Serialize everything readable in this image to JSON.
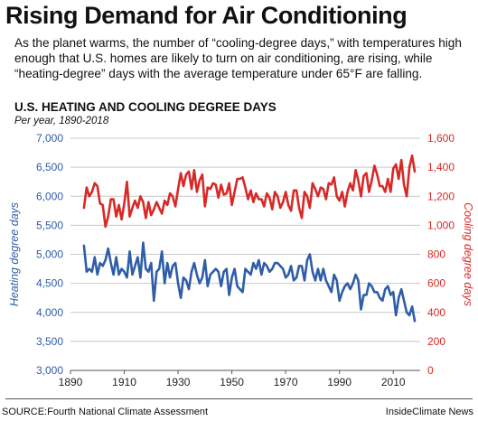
{
  "header": {
    "title": "Rising Demand for Air Conditioning",
    "subtitle": "As the planet warms, the number of “cooling-degree days,” with temperatures high enough  that U.S. homes are likely to turn on air conditioning, are rising, while “heating-degree” days with the average temperature under 65°F are falling."
  },
  "footer": {
    "source": "SOURCE:Fourth National Climate Assessment",
    "credit": "InsideClimate News"
  },
  "chart_data": {
    "type": "line",
    "title": "U.S. HEATING AND COOLING DEGREE DAYS",
    "subtitle": "Per year, 1890-2018",
    "x_ticks": [
      1890,
      1910,
      1930,
      1950,
      1970,
      1990,
      2010
    ],
    "xlim": [
      1890,
      2020
    ],
    "ylabel_left": "Heating degree days",
    "ylabel_right": "Cooling degree days",
    "y_left_ticks": [
      "3,000",
      "3,500",
      "4,000",
      "4,500",
      "5,000",
      "5,500",
      "6,000",
      "6,500",
      "7,000"
    ],
    "y_left_lim": [
      3000,
      7000
    ],
    "y_right_ticks": [
      "0",
      "200",
      "400",
      "600",
      "800",
      "1,000",
      "1,200",
      "1,400",
      "1,600"
    ],
    "y_right_lim": [
      0,
      1600
    ],
    "grid": "horizontal",
    "colors": {
      "heating": "#2f5da8",
      "cooling": "#d62a27",
      "grid": "#c8c8c8",
      "left_axis": "#2f5da8",
      "right_axis": "#d62a27"
    },
    "series": [
      {
        "key": "heating",
        "axis": "left",
        "x": [
          1895,
          1896,
          1897,
          1898,
          1899,
          1900,
          1901,
          1902,
          1903,
          1904,
          1905,
          1906,
          1907,
          1908,
          1909,
          1910,
          1911,
          1912,
          1913,
          1914,
          1915,
          1916,
          1917,
          1918,
          1919,
          1920,
          1921,
          1922,
          1923,
          1924,
          1925,
          1926,
          1927,
          1928,
          1929,
          1930,
          1931,
          1932,
          1933,
          1934,
          1935,
          1936,
          1937,
          1938,
          1939,
          1940,
          1941,
          1942,
          1943,
          1944,
          1945,
          1946,
          1947,
          1948,
          1949,
          1950,
          1951,
          1952,
          1953,
          1954,
          1955,
          1956,
          1957,
          1958,
          1959,
          1960,
          1961,
          1962,
          1963,
          1964,
          1965,
          1966,
          1967,
          1968,
          1969,
          1970,
          1971,
          1972,
          1973,
          1974,
          1975,
          1976,
          1977,
          1978,
          1979,
          1980,
          1981,
          1982,
          1983,
          1984,
          1985,
          1986,
          1987,
          1988,
          1989,
          1990,
          1991,
          1992,
          1993,
          1994,
          1995,
          1996,
          1997,
          1998,
          1999,
          2000,
          2001,
          2002,
          2003,
          2004,
          2005,
          2006,
          2007,
          2008,
          2009,
          2010,
          2011,
          2012,
          2013,
          2014,
          2015,
          2016,
          2017,
          2018
        ],
        "values": [
          5150,
          4700,
          4750,
          4700,
          4950,
          4650,
          4850,
          4800,
          4900,
          5100,
          4850,
          4650,
          4950,
          4650,
          4750,
          4700,
          4600,
          5050,
          4650,
          4800,
          4950,
          4600,
          5200,
          4750,
          4700,
          4850,
          4200,
          4700,
          4750,
          5050,
          4500,
          4850,
          4600,
          4800,
          4850,
          4500,
          4250,
          4600,
          4550,
          4400,
          4700,
          4850,
          4650,
          4500,
          4600,
          4900,
          4450,
          4650,
          4700,
          4750,
          4700,
          4450,
          4700,
          4750,
          4300,
          4600,
          4750,
          4450,
          4400,
          4350,
          4750,
          4700,
          4650,
          4850,
          4750,
          4900,
          4650,
          4850,
          4800,
          4700,
          4750,
          4850,
          4850,
          4800,
          4750,
          4600,
          4650,
          4800,
          4550,
          4600,
          4800,
          4800,
          4550,
          4900,
          5000,
          4700,
          4550,
          4750,
          4550,
          4750,
          4550,
          4450,
          4350,
          4650,
          4550,
          4200,
          4350,
          4450,
          4500,
          4400,
          4500,
          4650,
          4550,
          4050,
          4300,
          4300,
          4500,
          4450,
          4350,
          4350,
          4250,
          4200,
          4400,
          4450,
          4300,
          4350,
          3950,
          4250,
          4400,
          4200,
          4000,
          3950,
          4100,
          3850
        ],
        "note": "values placeholder replaced below"
      },
      {
        "key": "cooling",
        "axis": "right",
        "x": [
          1895,
          1896,
          1897,
          1898,
          1899,
          1900,
          1901,
          1902,
          1903,
          1904,
          1905,
          1906,
          1907,
          1908,
          1909,
          1910,
          1911,
          1912,
          1913,
          1914,
          1915,
          1916,
          1917,
          1918,
          1919,
          1920,
          1921,
          1922,
          1923,
          1924,
          1925,
          1926,
          1927,
          1928,
          1929,
          1930,
          1931,
          1932,
          1933,
          1934,
          1935,
          1936,
          1937,
          1938,
          1939,
          1940,
          1941,
          1942,
          1943,
          1944,
          1945,
          1946,
          1947,
          1948,
          1949,
          1950,
          1951,
          1952,
          1953,
          1954,
          1955,
          1956,
          1957,
          1958,
          1959,
          1960,
          1961,
          1962,
          1963,
          1964,
          1965,
          1966,
          1967,
          1968,
          1969,
          1970,
          1971,
          1972,
          1973,
          1974,
          1975,
          1976,
          1977,
          1978,
          1979,
          1980,
          1981,
          1982,
          1983,
          1984,
          1985,
          1986,
          1987,
          1988,
          1989,
          1990,
          1991,
          1992,
          1993,
          1994,
          1995,
          1996,
          1997,
          1998,
          1999,
          2000,
          2001,
          2002,
          2003,
          2004,
          2005,
          2006,
          2007,
          2008,
          2009,
          2010,
          2011,
          2012,
          2013,
          2014,
          2015,
          2016,
          2017,
          2018
        ],
        "values": [
          1120,
          1260,
          1200,
          1230,
          1290,
          1270,
          1150,
          1140,
          990,
          1060,
          1180,
          1180,
          1060,
          1140,
          1040,
          1150,
          1300,
          1060,
          1120,
          1170,
          1120,
          1200,
          1160,
          1050,
          1160,
          1070,
          1110,
          1160,
          1120,
          1080,
          1170,
          1140,
          1220,
          1200,
          1130,
          1250,
          1360,
          1270,
          1350,
          1370,
          1250,
          1380,
          1230,
          1310,
          1350,
          1130,
          1260,
          1250,
          1290,
          1280,
          1190,
          1280,
          1210,
          1220,
          1290,
          1140,
          1230,
          1320,
          1320,
          1330,
          1260,
          1180,
          1240,
          1160,
          1220,
          1180,
          1180,
          1130,
          1220,
          1190,
          1110,
          1230,
          1200,
          1120,
          1160,
          1230,
          1140,
          1100,
          1240,
          1240,
          1120,
          1050,
          1230,
          1200,
          1120,
          1290,
          1250,
          1200,
          1260,
          1250,
          1180,
          1290,
          1280,
          1330,
          1200,
          1170,
          1230,
          1130,
          1230,
          1290,
          1240,
          1380,
          1310,
          1200,
          1340,
          1360,
          1230,
          1310,
          1410,
          1350,
          1270,
          1270,
          1230,
          1320,
          1230,
          1390,
          1420,
          1320,
          1450,
          1280,
          1200,
          1400,
          1480,
          1370
        ]
      }
    ]
  }
}
